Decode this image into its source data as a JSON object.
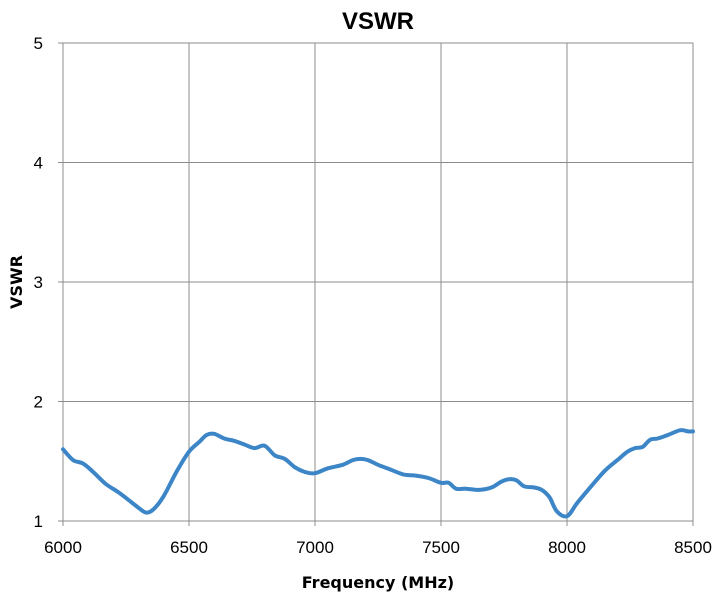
{
  "chart_data": {
    "type": "line",
    "title": "VSWR",
    "xlabel": "Frequency (MHz)",
    "ylabel": "VSWR",
    "xlim": [
      6000,
      8500
    ],
    "ylim": [
      1,
      5
    ],
    "x_ticks": [
      6000,
      6500,
      7000,
      7500,
      8000,
      8500
    ],
    "y_ticks": [
      1,
      2,
      3,
      4,
      5
    ],
    "grid": true,
    "legend": "none",
    "series": [
      {
        "color": "#3c86c8",
        "x": [
          6000,
          6040,
          6080,
          6120,
          6170,
          6220,
          6270,
          6300,
          6330,
          6360,
          6400,
          6450,
          6500,
          6540,
          6570,
          6600,
          6640,
          6680,
          6720,
          6760,
          6800,
          6840,
          6880,
          6920,
          6960,
          7000,
          7050,
          7110,
          7150,
          7180,
          7210,
          7250,
          7300,
          7350,
          7400,
          7450,
          7500,
          7530,
          7560,
          7600,
          7650,
          7700,
          7740,
          7770,
          7800,
          7830,
          7870,
          7900,
          7930,
          7960,
          8000,
          8040,
          8100,
          8150,
          8200,
          8240,
          8270,
          8300,
          8330,
          8360,
          8400,
          8450,
          8480,
          8500
        ],
        "y": [
          1.6,
          1.51,
          1.48,
          1.41,
          1.31,
          1.24,
          1.16,
          1.11,
          1.07,
          1.1,
          1.21,
          1.41,
          1.58,
          1.66,
          1.72,
          1.73,
          1.69,
          1.67,
          1.64,
          1.61,
          1.63,
          1.55,
          1.52,
          1.45,
          1.41,
          1.4,
          1.44,
          1.47,
          1.51,
          1.52,
          1.51,
          1.47,
          1.43,
          1.39,
          1.38,
          1.36,
          1.32,
          1.32,
          1.27,
          1.27,
          1.26,
          1.28,
          1.33,
          1.35,
          1.34,
          1.29,
          1.28,
          1.26,
          1.2,
          1.08,
          1.04,
          1.15,
          1.3,
          1.42,
          1.51,
          1.58,
          1.61,
          1.62,
          1.68,
          1.69,
          1.72,
          1.76,
          1.75,
          1.75
        ]
      }
    ]
  }
}
